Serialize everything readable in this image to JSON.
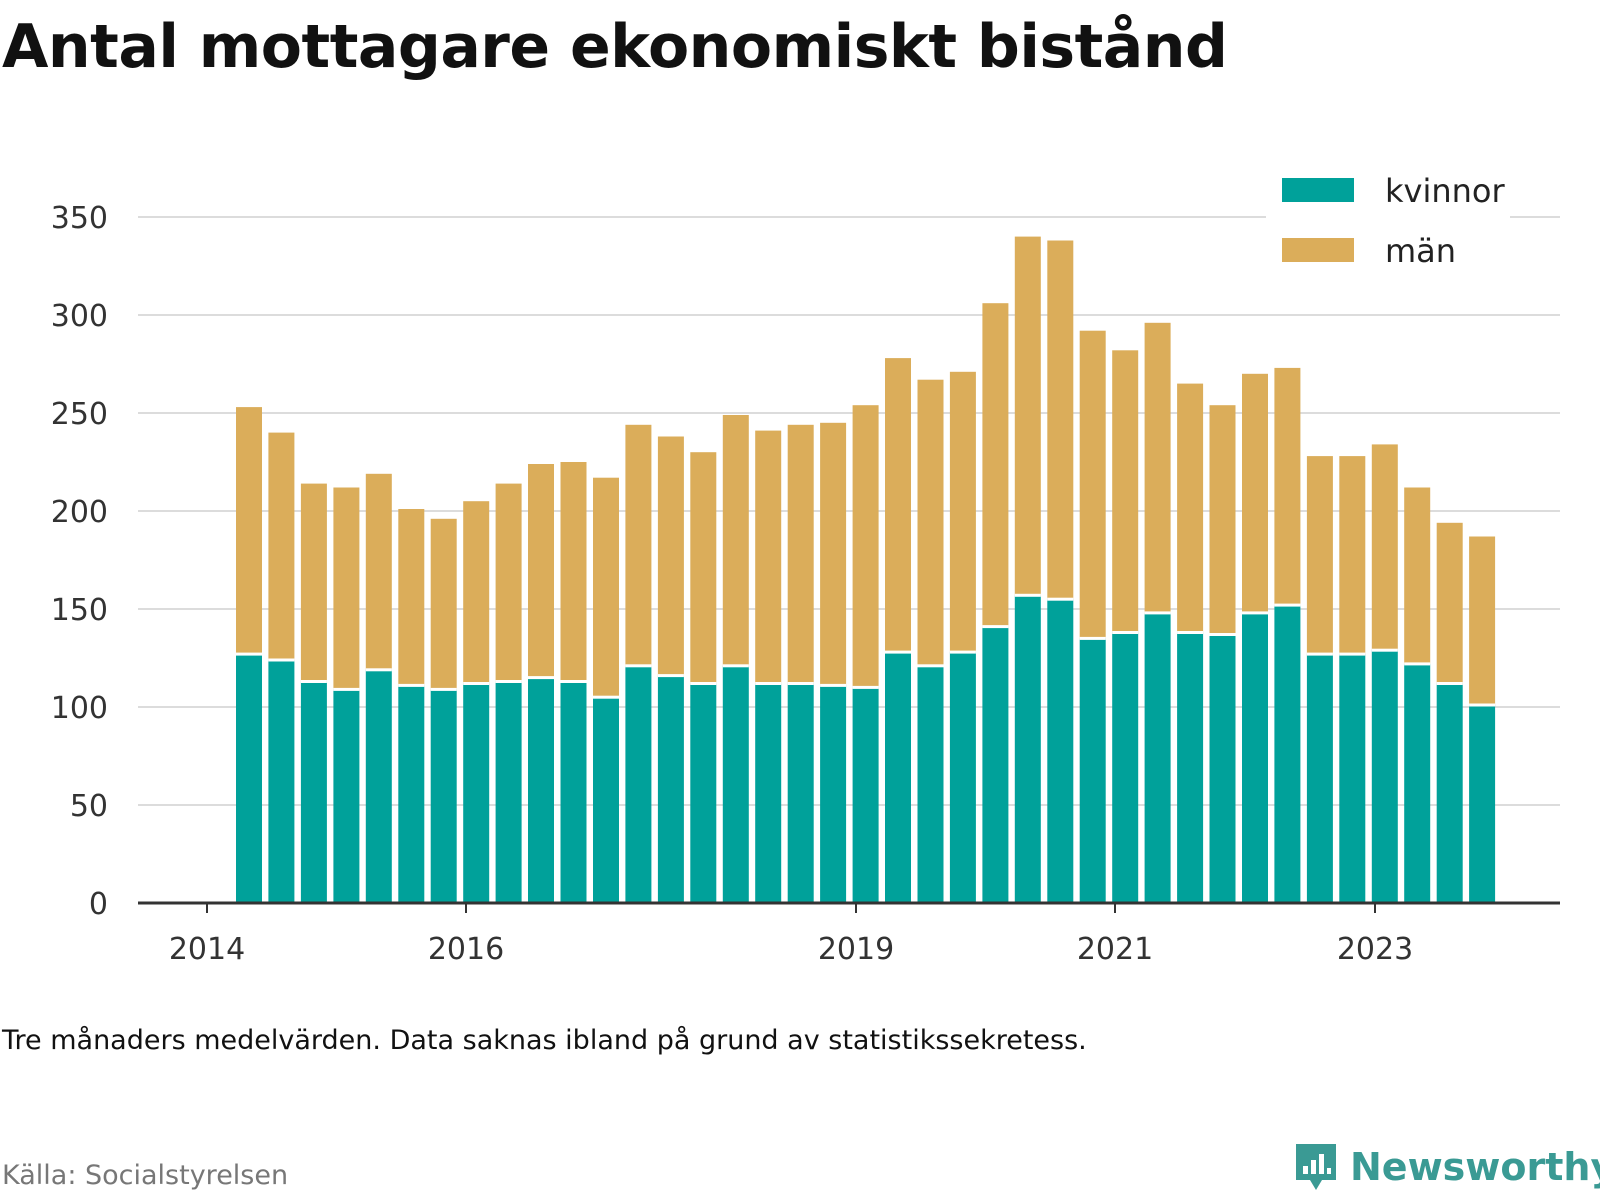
{
  "title": "Antal mottagare ekonomiskt bistånd",
  "note": "Tre månaders medelvärden. Data saknas ibland på grund av statistikssekretess.",
  "source": "Källa: Socialstyrelsen",
  "brand": "Newsworthy",
  "colors": {
    "kvinnor": "#00a19a",
    "man": "#dbad5a",
    "grid": "#dcdcdc",
    "axis": "#333333",
    "brand": "#3a9a94"
  },
  "chart_data": {
    "type": "bar",
    "stacked": true,
    "ylim": [
      0,
      360
    ],
    "yticks": [
      0,
      50,
      100,
      150,
      200,
      250,
      300,
      350
    ],
    "xticks": [
      "2014",
      "2016",
      "2019",
      "2021",
      "2023"
    ],
    "legend": "top-right",
    "grid": true,
    "series": [
      {
        "name": "kvinnor",
        "values": [
          127,
          124,
          113,
          109,
          119,
          111,
          109,
          112,
          113,
          115,
          113,
          105,
          121,
          116,
          112,
          121,
          112,
          112,
          111,
          110,
          128,
          121,
          128,
          141,
          157,
          155,
          135,
          138,
          148,
          138,
          137,
          148,
          152,
          127,
          127,
          129,
          122,
          112,
          101
        ]
      },
      {
        "name": "män",
        "values": [
          126,
          116,
          101,
          103,
          100,
          90,
          87,
          93,
          101,
          109,
          112,
          112,
          123,
          122,
          118,
          128,
          129,
          132,
          134,
          144,
          150,
          146,
          143,
          165,
          183,
          183,
          157,
          144,
          148,
          127,
          117,
          122,
          121,
          101,
          101,
          105,
          90,
          82,
          86
        ]
      }
    ]
  }
}
